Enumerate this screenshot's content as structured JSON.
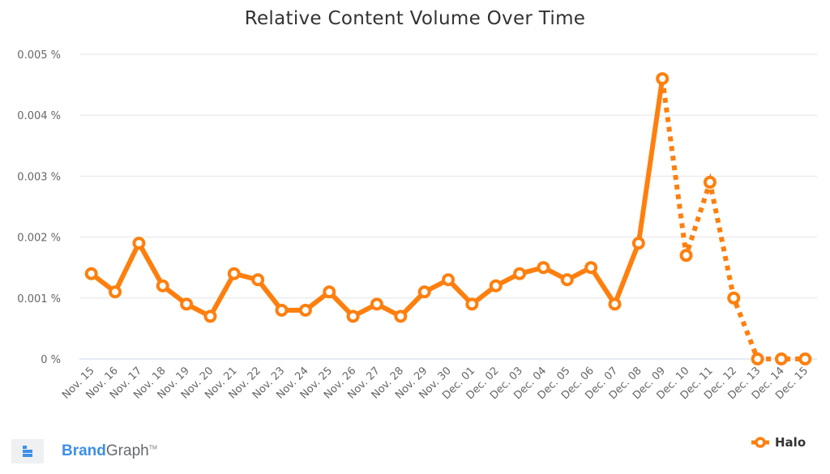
{
  "chart_data": {
    "type": "line",
    "title": "Relative Content Volume Over Time",
    "xlabel": "",
    "ylabel": "",
    "ylim": [
      0,
      0.005
    ],
    "y_ticks": [
      "0 %",
      "0.001 %",
      "0.002 %",
      "0.003 %",
      "0.004 %",
      "0.005 %"
    ],
    "grid": true,
    "legend_position": "bottom-right",
    "categories": [
      "Nov. 15",
      "Nov. 16",
      "Nov. 17",
      "Nov. 18",
      "Nov. 19",
      "Nov. 20",
      "Nov. 21",
      "Nov. 22",
      "Nov. 23",
      "Nov. 24",
      "Nov. 25",
      "Nov. 26",
      "Nov. 27",
      "Nov. 28",
      "Nov. 29",
      "Nov. 30",
      "Dec. 01",
      "Dec. 02",
      "Dec. 03",
      "Dec. 04",
      "Dec. 05",
      "Dec. 06",
      "Dec. 07",
      "Dec. 08",
      "Dec. 09",
      "Dec. 10",
      "Dec. 11",
      "Dec. 12",
      "Dec. 13",
      "Dec. 14",
      "Dec. 15"
    ],
    "series": [
      {
        "name": "Halo",
        "color": "#ff7f0e",
        "values": [
          0.0014,
          0.0011,
          0.0019,
          0.0012,
          0.0009,
          0.0007,
          0.0014,
          0.0013,
          0.0008,
          0.0008,
          0.0011,
          0.0007,
          0.0009,
          0.0007,
          0.0011,
          0.0013,
          0.0009,
          0.0012,
          0.0014,
          0.0015,
          0.0013,
          0.0015,
          0.0009,
          0.0019,
          0.0046,
          0.0017,
          0.0029,
          0.001,
          0.0,
          0.0,
          0.0
        ],
        "solid_until_index": 24,
        "dashed_after_index": 24
      }
    ]
  },
  "legend": {
    "label": "Halo"
  },
  "branding": {
    "name_bold": "Brand",
    "name_light": "Graph",
    "tm": "TM"
  },
  "colors": {
    "series": "#ff7f0e",
    "grid": "#e6e6e6",
    "axis": "#ccd6eb",
    "text": "#666666"
  }
}
